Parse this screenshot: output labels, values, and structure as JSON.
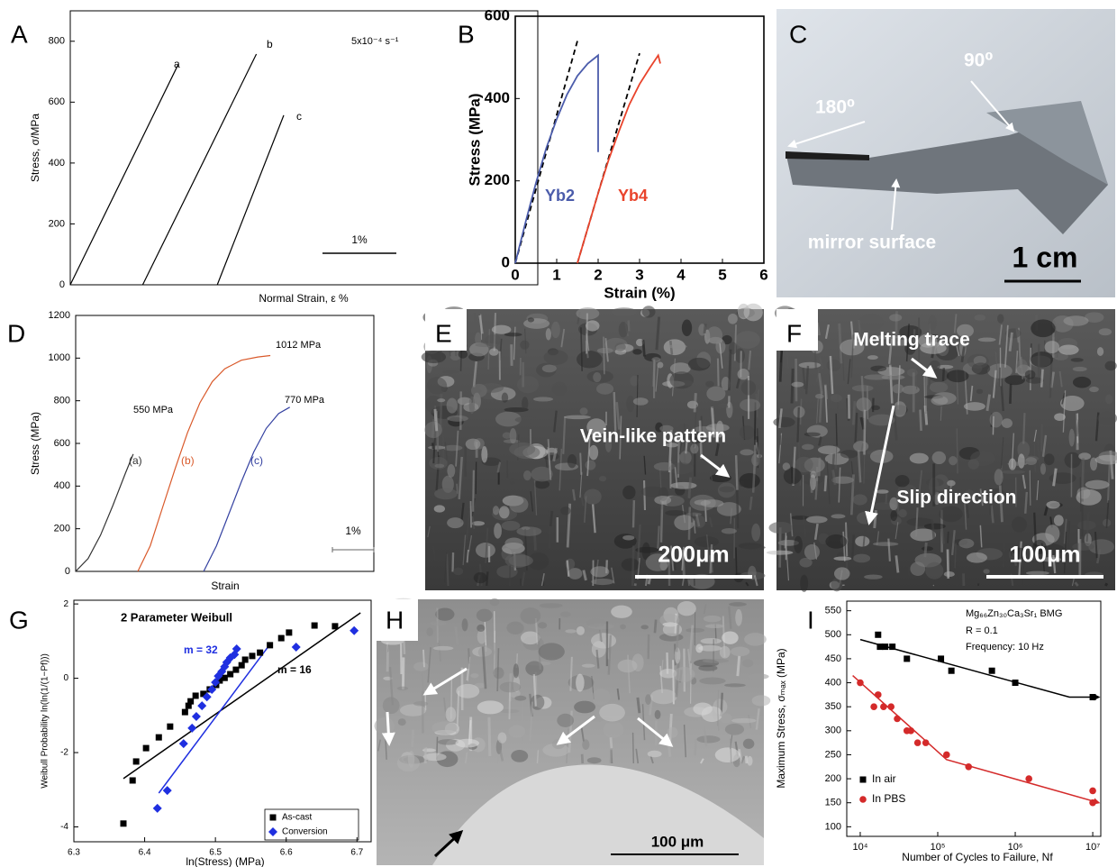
{
  "panel_letters": [
    "A",
    "B",
    "C",
    "D",
    "E",
    "F",
    "G",
    "H",
    "I"
  ],
  "chart_data": [
    {
      "type": "line",
      "ylabel": "Stress, σ/MPa",
      "xlabel": "Normal Strain, ε %",
      "annotations": [
        "5x10⁻⁴ s⁻¹"
      ],
      "xlim": [
        0,
        6.33
      ],
      "ylim": [
        0,
        900
      ],
      "yticks": [
        0,
        200,
        400,
        600,
        800
      ],
      "series": [
        {
          "name": "a",
          "color": "#000000",
          "x": [
            0,
            1.46
          ],
          "values": [
            0,
            723
          ]
        },
        {
          "name": "b",
          "color": "#000000",
          "x": [
            0.98,
            2.52
          ],
          "values": [
            0,
            758
          ]
        },
        {
          "name": "c",
          "color": "#000000",
          "x": [
            1.99,
            2.89
          ],
          "values": [
            0,
            557
          ]
        }
      ],
      "scale_bar": {
        "value": 1,
        "label": "1%"
      }
    },
    {
      "type": "line",
      "ylabel": "Stress (MPa)",
      "xlabel": "Strain (%)",
      "xlim": [
        0,
        6
      ],
      "ylim": [
        0,
        600
      ],
      "xticks": [
        0,
        1,
        2,
        3,
        4,
        5,
        6
      ],
      "yticks": [
        0,
        200,
        400,
        600
      ],
      "series": [
        {
          "name": "Yb2",
          "color": "#4b5cab",
          "x": [
            0,
            0.25,
            0.5,
            0.75,
            1.0,
            1.25,
            1.5,
            1.75,
            2.0,
            2.0
          ],
          "values": [
            0,
            100,
            195,
            280,
            350,
            410,
            455,
            485,
            505,
            270
          ]
        },
        {
          "name": "Yb4",
          "color": "#e9432b",
          "x": [
            1.5,
            1.75,
            2.0,
            2.25,
            2.5,
            2.75,
            3.0,
            3.25,
            3.45,
            3.5
          ],
          "values": [
            0,
            85,
            170,
            250,
            320,
            385,
            435,
            475,
            505,
            485
          ]
        }
      ],
      "dashed_lines": [
        {
          "x": [
            0,
            1.5
          ],
          "values": [
            0,
            540
          ]
        },
        {
          "x": [
            1.5,
            3.0
          ],
          "values": [
            0,
            510
          ]
        }
      ]
    },
    {
      "type": "line",
      "ylabel": "Stress (MPa)",
      "xlabel": "Strain",
      "annotations": [
        "550 MPa",
        "1012 MPa",
        "770 MPa"
      ],
      "xlim": [
        0,
        7.2
      ],
      "ylim": [
        0,
        1200
      ],
      "yticks": [
        0,
        200,
        400,
        600,
        800,
        1000,
        1200
      ],
      "series": [
        {
          "name": "(a)",
          "color": "#333333",
          "x": [
            0,
            0.3,
            0.6,
            0.9,
            1.2,
            1.39
          ],
          "values": [
            0,
            60,
            170,
            310,
            460,
            550
          ]
        },
        {
          "name": "(b)",
          "color": "#d9592a",
          "x": [
            1.5,
            1.8,
            2.1,
            2.4,
            2.7,
            3.0,
            3.3,
            3.6,
            4.0,
            4.4,
            4.7
          ],
          "values": [
            0,
            120,
            300,
            480,
            650,
            790,
            890,
            950,
            990,
            1005,
            1012
          ]
        },
        {
          "name": "(c)",
          "color": "#3340a0",
          "x": [
            3.09,
            3.4,
            3.7,
            4.0,
            4.3,
            4.6,
            4.9,
            5.17
          ],
          "values": [
            0,
            120,
            270,
            420,
            560,
            670,
            740,
            770
          ]
        }
      ],
      "scale_bar": {
        "value": 1,
        "label": "1%"
      }
    },
    {
      "type": "scatter",
      "title": "2 Parameter Weibull",
      "ylabel": "Weibull Probability  ln(ln(1/(1−Pf)))",
      "xlabel": "ln(Stress) (MPa)",
      "xlim": [
        6.3,
        6.72
      ],
      "ylim": [
        -4.4,
        2.1
      ],
      "xticks": [
        6.3,
        6.4,
        6.5,
        6.6,
        6.7
      ],
      "yticks": [
        -4,
        -2,
        0,
        2
      ],
      "series": [
        {
          "name": "As-cast",
          "color": "#000000",
          "marker": "square",
          "x": [
            6.37,
            6.383,
            6.388,
            6.402,
            6.42,
            6.436,
            6.457,
            6.462,
            6.465,
            6.472,
            6.483,
            6.492,
            6.501,
            6.506,
            6.513,
            6.521,
            6.529,
            6.537,
            6.542,
            6.552,
            6.563,
            6.577,
            6.593,
            6.604,
            6.64,
            6.669
          ],
          "values": [
            -3.91,
            -2.75,
            -2.24,
            -1.88,
            -1.59,
            -1.3,
            -0.91,
            -0.74,
            -0.62,
            -0.47,
            -0.42,
            -0.3,
            -0.18,
            -0.06,
            0.01,
            0.11,
            0.23,
            0.35,
            0.5,
            0.6,
            0.69,
            0.89,
            1.08,
            1.23,
            1.42,
            1.4
          ]
        },
        {
          "name": "Conversion",
          "color": "#1f2fe0",
          "marker": "diamond",
          "x": [
            6.418,
            6.432,
            6.455,
            6.467,
            6.473,
            6.481,
            6.488,
            6.495,
            6.5,
            6.504,
            6.509,
            6.513,
            6.516,
            6.521,
            6.527,
            6.53,
            6.614,
            6.696
          ],
          "values": [
            -3.5,
            -3.02,
            -1.76,
            -1.34,
            -1.03,
            -0.74,
            -0.5,
            -0.3,
            -0.11,
            0.06,
            0.18,
            0.31,
            0.43,
            0.55,
            0.64,
            0.79,
            0.84,
            1.28
          ]
        }
      ],
      "fit_lines": [
        {
          "label": "m = 16",
          "color": "#000000",
          "x": [
            6.37,
            6.705
          ],
          "values": [
            -2.7,
            1.76
          ]
        },
        {
          "label": "m = 32",
          "color": "#1f2fe0",
          "x": [
            6.42,
            6.577
          ],
          "values": [
            -3.09,
            0.91
          ]
        }
      ]
    },
    {
      "type": "scatter",
      "ylabel": "Maximum Stress, σₘₐₓ (MPa)",
      "xlabel": "Number of Cycles to Failure, Nf",
      "annotations": [
        "Mg₆₆Zn₃₀Ca₃Sr₁ BMG",
        "R = 0.1",
        "Frequency: 10 Hz"
      ],
      "xscale": "log",
      "xlim": [
        6700,
        12700000
      ],
      "ylim": [
        80,
        570
      ],
      "xticks": [
        {
          "value": 10000,
          "label": "10⁴"
        },
        {
          "value": 100000,
          "label": "10⁵"
        },
        {
          "value": 1000000,
          "label": "10⁶"
        },
        {
          "value": 10000000,
          "label": "10⁷"
        }
      ],
      "yticks": [
        100,
        150,
        200,
        250,
        300,
        350,
        400,
        450,
        500,
        550
      ],
      "series": [
        {
          "name": "In air",
          "color": "#000000",
          "marker": "square",
          "x": [
            17000,
            18000,
            21000,
            26000,
            40000,
            110000,
            150000,
            500000,
            1000000,
            10000000
          ],
          "values": [
            500,
            475,
            475,
            475,
            450,
            450,
            425,
            425,
            400,
            370
          ]
        },
        {
          "name": "In PBS",
          "color": "#d42a2a",
          "marker": "circle",
          "x": [
            10000,
            15000,
            17000,
            20000,
            25000,
            30000,
            40000,
            45000,
            55000,
            70000,
            130000,
            250000,
            1500000,
            10000000,
            10000000
          ],
          "values": [
            400,
            350,
            375,
            350,
            350,
            325,
            300,
            300,
            275,
            275,
            250,
            225,
            200,
            175,
            150
          ]
        }
      ],
      "fit_lines": [
        {
          "color": "#000000",
          "x": [
            10000,
            5000000,
            12000000
          ],
          "values": [
            490,
            370,
            370
          ]
        },
        {
          "color": "#d42a2a",
          "x": [
            8000,
            130000,
            12000000
          ],
          "values": [
            415,
            240,
            150
          ]
        }
      ]
    }
  ],
  "photos": {
    "C": {
      "labels": [
        "180⁰",
        "90⁰",
        "mirror surface"
      ],
      "scale_bar": "1 cm"
    },
    "E": {
      "labels": [
        "Vein-like pattern"
      ],
      "scale_bar": "200μm"
    },
    "F": {
      "labels": [
        "Melting trace",
        "Slip direction"
      ],
      "scale_bar": "100μm"
    },
    "H": {
      "scale_bar": "100 μm"
    }
  }
}
